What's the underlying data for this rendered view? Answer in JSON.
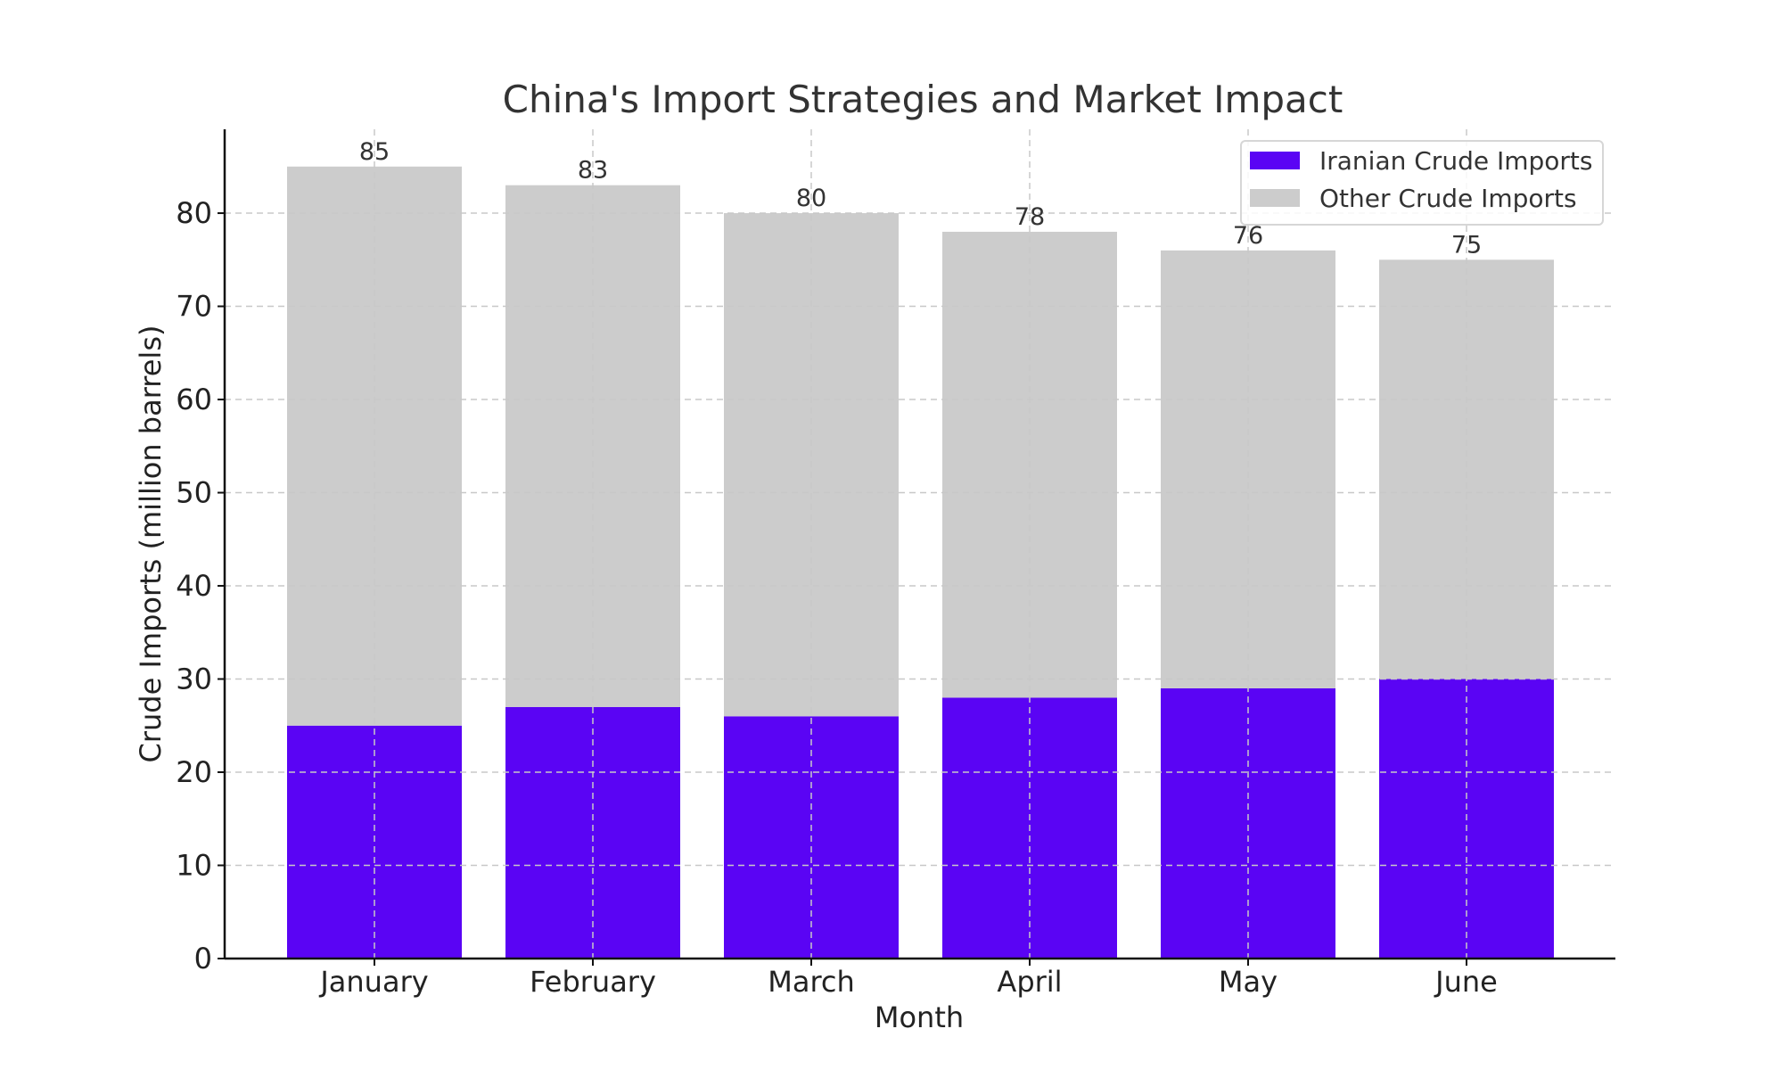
{
  "chart_data": {
    "type": "bar",
    "stacked": true,
    "title": "China's Import Strategies and Market Impact",
    "xlabel": "Month",
    "ylabel": "Crude Imports (million barrels)",
    "categories": [
      "January",
      "February",
      "March",
      "April",
      "May",
      "June"
    ],
    "series": [
      {
        "name": "Iranian Crude Imports",
        "values": [
          25,
          27,
          26,
          28,
          29,
          30
        ],
        "color": "#5a04f4"
      },
      {
        "name": "Other Crude Imports",
        "values": [
          60,
          56,
          54,
          50,
          47,
          45
        ],
        "color": "#cccccc"
      }
    ],
    "totals": [
      85,
      83,
      80,
      78,
      76,
      75
    ],
    "ylim": [
      0,
      89
    ],
    "yticks": [
      0,
      10,
      20,
      30,
      40,
      50,
      60,
      70,
      80
    ],
    "grid": true,
    "legend_position": "top-right"
  }
}
